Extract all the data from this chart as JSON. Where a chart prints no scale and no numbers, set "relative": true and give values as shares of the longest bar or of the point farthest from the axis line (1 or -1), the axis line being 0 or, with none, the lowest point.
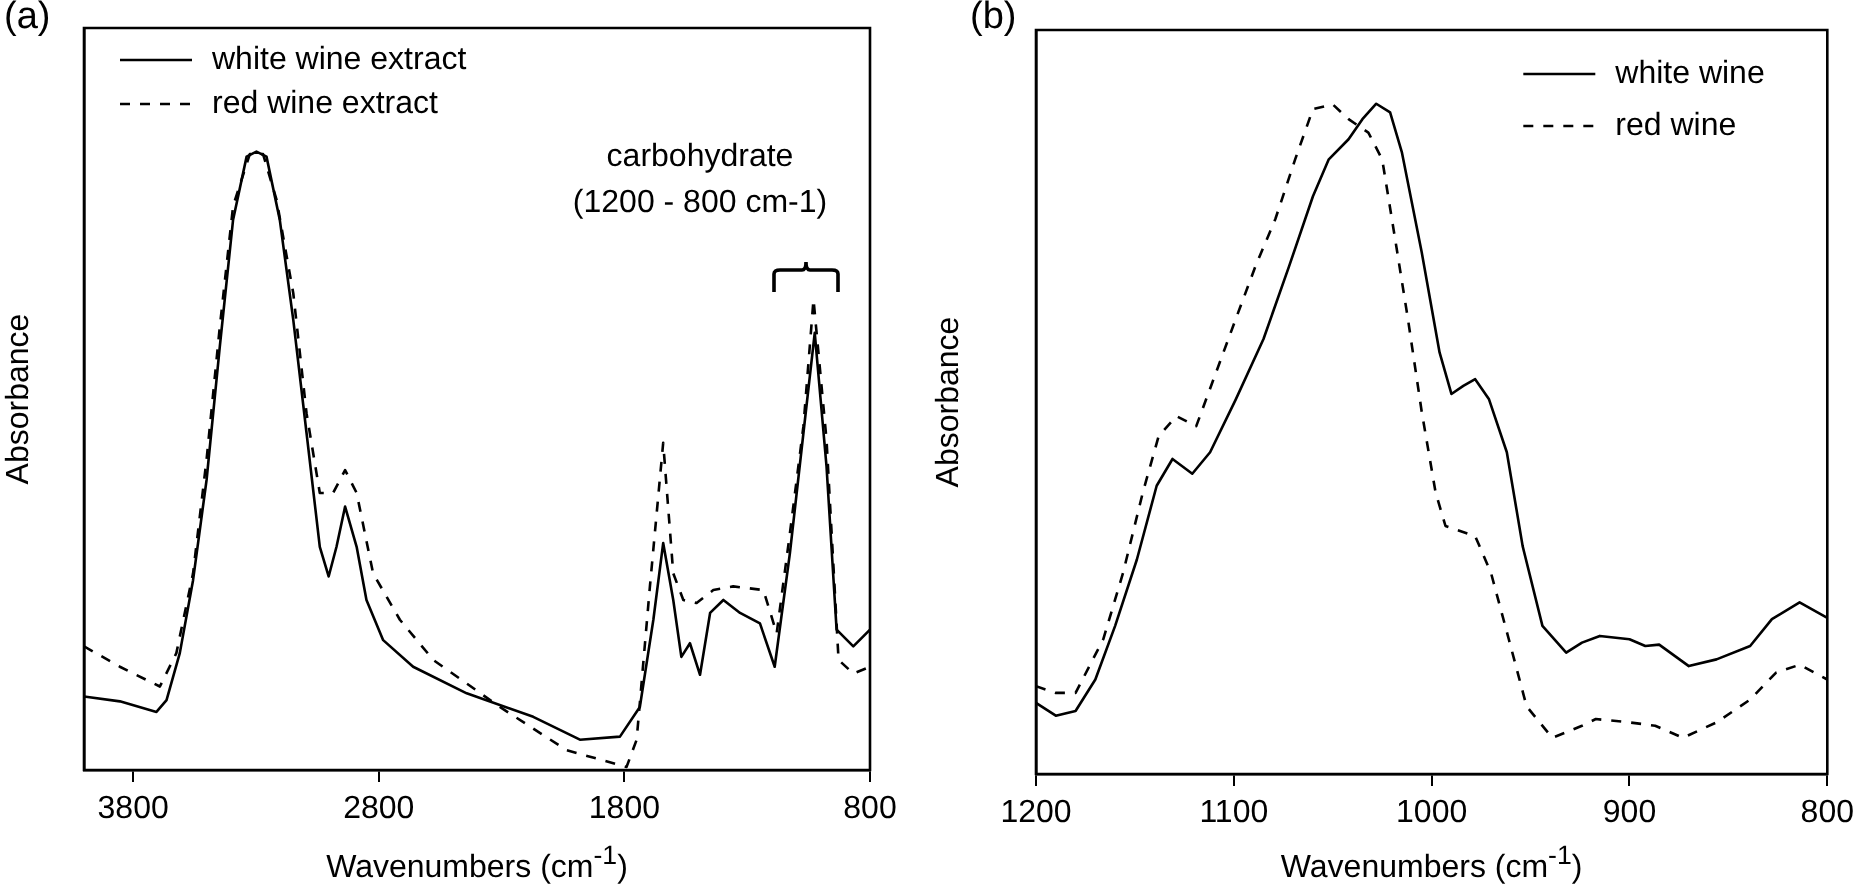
{
  "chart_data": [
    {
      "type": "line",
      "title": "(a)",
      "xlabel": "Wavenumbers (cm$^{-1}$)",
      "ylabel": "Absorbance",
      "relative": true,
      "legend": "top left",
      "grid": false,
      "xlim": [
        4000,
        800
      ],
      "xticks": [
        3800,
        2800,
        1800,
        800
      ],
      "annotations": [
        "carbohydrate\n(1200 - 800 cm-1)"
      ],
      "series": [
        {
          "name": "white wine extract",
          "color": "#000000",
          "line_style": "solid",
          "x": [
            4000,
            3854,
            3705,
            3664,
            3610,
            3556,
            3501,
            3447,
            3393,
            3338,
            3298,
            3257,
            3203,
            3148,
            3094,
            3040,
            3004,
            2972,
            2937,
            2890,
            2850,
            2782,
            2660,
            2442,
            2171,
            1981,
            1818,
            1737,
            1682,
            1642,
            1601,
            1568,
            1533,
            1492,
            1451,
            1397,
            1329,
            1248,
            1188,
            1126,
            1071,
            1025,
            977,
            936,
            868,
            800
          ],
          "values": [
            0.119,
            0.111,
            0.094,
            0.113,
            0.189,
            0.307,
            0.469,
            0.685,
            0.89,
            0.992,
            1.0,
            0.992,
            0.89,
            0.728,
            0.545,
            0.361,
            0.313,
            0.361,
            0.426,
            0.361,
            0.275,
            0.21,
            0.167,
            0.124,
            0.086,
            0.049,
            0.054,
            0.102,
            0.243,
            0.367,
            0.275,
            0.183,
            0.205,
            0.154,
            0.254,
            0.275,
            0.254,
            0.237,
            0.167,
            0.351,
            0.545,
            0.707,
            0.491,
            0.227,
            0.2,
            0.227
          ]
        },
        {
          "name": "red wine extract",
          "color": "#000000",
          "line_style": "dashed",
          "x": [
            4000,
            3854,
            3691,
            3624,
            3556,
            3501,
            3447,
            3393,
            3325,
            3271,
            3216,
            3148,
            3094,
            3040,
            2986,
            2937,
            2890,
            2823,
            2714,
            2578,
            2307,
            2035,
            1791,
            1750,
            1696,
            1642,
            1601,
            1560,
            1506,
            1438,
            1357,
            1234,
            1180,
            1126,
            1071,
            1030,
            977,
            928,
            868,
            800
          ],
          "values": [
            0.2,
            0.167,
            0.135,
            0.189,
            0.318,
            0.502,
            0.717,
            0.912,
            0.996,
            0.996,
            0.922,
            0.771,
            0.577,
            0.448,
            0.448,
            0.485,
            0.448,
            0.318,
            0.243,
            0.178,
            0.102,
            0.032,
            0.005,
            0.049,
            0.297,
            0.529,
            0.318,
            0.275,
            0.27,
            0.291,
            0.297,
            0.291,
            0.221,
            0.383,
            0.556,
            0.761,
            0.534,
            0.178,
            0.156,
            0.167
          ]
        }
      ]
    },
    {
      "type": "line",
      "title": "(b)",
      "xlabel": "Wavenumbers (cm$^{-1}$)",
      "ylabel": "Absorbance",
      "relative": true,
      "legend": "top right",
      "grid": false,
      "xlim": [
        1200,
        800
      ],
      "xticks": [
        1200,
        1100,
        1000,
        900,
        800
      ],
      "series": [
        {
          "name": "white wine",
          "color": "#000000",
          "line_style": "solid",
          "x": [
            1200,
            1190,
            1180,
            1170,
            1160,
            1149,
            1139,
            1131,
            1121,
            1112,
            1099,
            1085,
            1072,
            1060,
            1052,
            1042,
            1035,
            1028,
            1021,
            1015,
            1005,
            996,
            990,
            984,
            978,
            971,
            962,
            954,
            944,
            932,
            924,
            915,
            900,
            892,
            885,
            870,
            856,
            839,
            828,
            814,
            800
          ],
          "values": [
            0.106,
            0.087,
            0.094,
            0.141,
            0.221,
            0.32,
            0.43,
            0.47,
            0.448,
            0.48,
            0.559,
            0.649,
            0.758,
            0.862,
            0.917,
            0.947,
            0.977,
            1.0,
            0.987,
            0.927,
            0.778,
            0.629,
            0.567,
            0.579,
            0.589,
            0.559,
            0.48,
            0.34,
            0.221,
            0.181,
            0.196,
            0.206,
            0.201,
            0.191,
            0.193,
            0.161,
            0.171,
            0.191,
            0.231,
            0.256,
            0.233
          ]
        },
        {
          "name": "red wine",
          "color": "#000000",
          "line_style": "dashed",
          "x": [
            1200,
            1190,
            1180,
            1166,
            1156,
            1146,
            1138,
            1129,
            1119,
            1109,
            1099,
            1089,
            1079,
            1069,
            1060,
            1050,
            1042,
            1032,
            1025,
            1019,
            1012,
            1005,
            998,
            993,
            978,
            970,
            961,
            952,
            939,
            924,
            917,
            900,
            887,
            873,
            856,
            839,
            826,
            814,
            800
          ],
          "values": [
            0.131,
            0.121,
            0.121,
            0.201,
            0.3,
            0.42,
            0.504,
            0.534,
            0.519,
            0.599,
            0.679,
            0.758,
            0.828,
            0.917,
            0.992,
            0.999,
            0.977,
            0.957,
            0.917,
            0.808,
            0.679,
            0.54,
            0.42,
            0.37,
            0.355,
            0.3,
            0.201,
            0.101,
            0.054,
            0.072,
            0.082,
            0.077,
            0.072,
            0.054,
            0.077,
            0.111,
            0.151,
            0.163,
            0.141
          ]
        }
      ]
    }
  ]
}
